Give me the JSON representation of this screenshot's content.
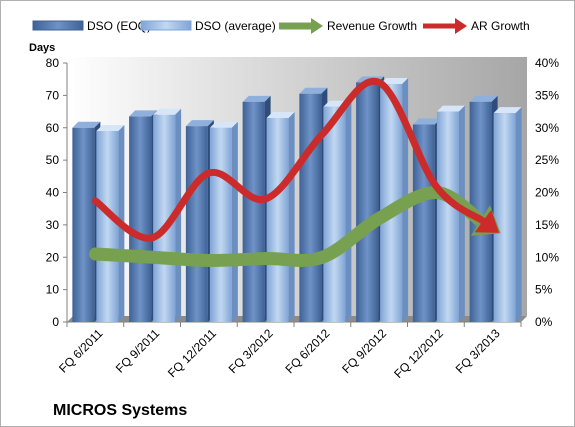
{
  "chart_data": {
    "type": "bar",
    "company": "MICROS Systems",
    "ylabel": "Days",
    "categories": [
      "FQ 6/2011",
      "FQ 9/2011",
      "FQ 12/2011",
      "FQ 3/2012",
      "FQ 6/2012",
      "FQ 9/2012",
      "FQ 12/2012",
      "FQ 3/2013"
    ],
    "ylim": [
      0,
      80
    ],
    "y2lim": [
      0,
      0.4
    ],
    "y_ticks": [
      "0",
      "10",
      "20",
      "30",
      "40",
      "50",
      "60",
      "70",
      "80"
    ],
    "y2_ticks": [
      "0%",
      "5%",
      "10%",
      "15%",
      "20%",
      "25%",
      "30%",
      "35%",
      "40%"
    ],
    "grid": false,
    "legend_position": "top",
    "bar_series": [
      {
        "name": "DSO (EOQ)",
        "values": [
          60,
          63.5,
          60.5,
          68,
          70.5,
          74,
          61,
          68
        ],
        "color": "#5b7fb5"
      },
      {
        "name": "DSO (average)",
        "values": [
          59,
          64,
          60,
          63,
          66.5,
          73.5,
          65,
          64.5
        ],
        "color": "#a3c1e6"
      }
    ],
    "line_series": [
      {
        "name": "Revenue Growth",
        "axis": "right",
        "values": [
          0.105,
          0.1,
          0.095,
          0.098,
          0.1,
          0.16,
          0.2,
          0.145
        ],
        "color": "#77a050"
      },
      {
        "name": "AR Growth",
        "axis": "right",
        "values": [
          0.187,
          0.13,
          0.23,
          0.19,
          0.29,
          0.37,
          0.21,
          0.145
        ],
        "color": "#cc2b2b"
      }
    ]
  }
}
